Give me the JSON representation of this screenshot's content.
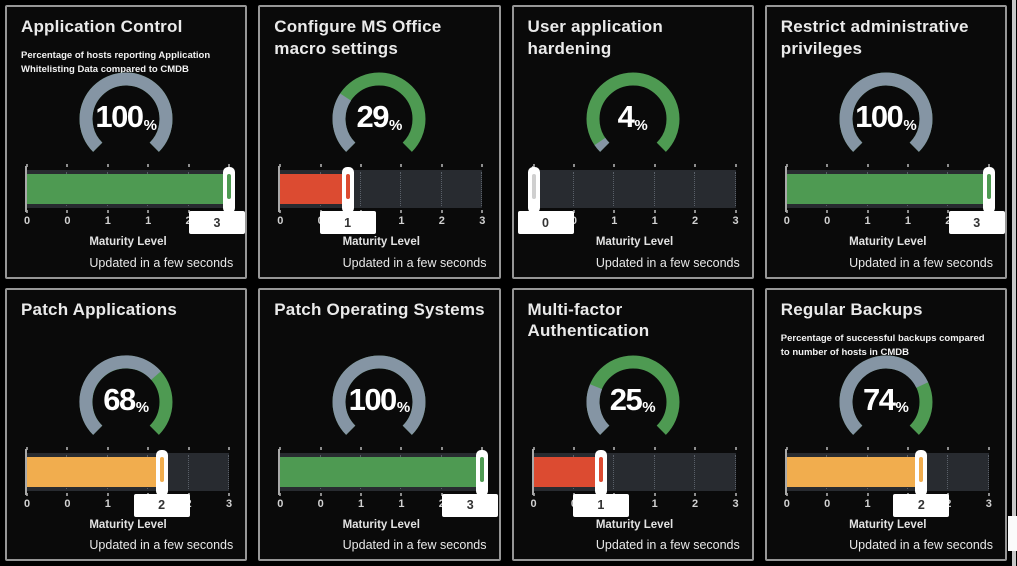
{
  "labels": {
    "maturity_level": "Maturity Level",
    "updated": "Updated in a few seconds",
    "percent_sign": "%"
  },
  "axis": {
    "title": "Maturity Level",
    "min": 0,
    "max": 3,
    "tick_labels": [
      "0",
      "0",
      "1",
      "1",
      "2",
      "3"
    ]
  },
  "colors": {
    "gauge_value": "#8595a4",
    "gauge_remainder": "#4e9a52",
    "green": "#4e9a52",
    "orange": "#f1ad4e",
    "red": "#dc4b31",
    "track": "#282b30",
    "panel_border": "#969696",
    "marker": "#ffffff"
  },
  "chart_data": [
    {
      "type": "gauge",
      "title": "Application Control",
      "subtitle": "Percentage of hosts reporting Application Whitelisting Data compared to CMDB",
      "percent": 100,
      "maturity": 3,
      "bar_color": "green"
    },
    {
      "type": "gauge",
      "title": "Configure MS Office macro settings",
      "subtitle": "",
      "percent": 29,
      "maturity": 1,
      "bar_color": "red"
    },
    {
      "type": "gauge",
      "title": "User application hardening",
      "subtitle": "",
      "percent": 4,
      "maturity": 0,
      "bar_color": "none"
    },
    {
      "type": "gauge",
      "title": "Restrict administrative privileges",
      "subtitle": "",
      "percent": 100,
      "maturity": 3,
      "bar_color": "green"
    },
    {
      "type": "gauge",
      "title": "Patch Applications",
      "subtitle": "",
      "percent": 68,
      "maturity": 2,
      "bar_color": "orange"
    },
    {
      "type": "gauge",
      "title": "Patch Operating Systems",
      "subtitle": "",
      "percent": 100,
      "maturity": 3,
      "bar_color": "green"
    },
    {
      "type": "gauge",
      "title": "Multi-factor Authentication",
      "subtitle": "",
      "percent": 25,
      "maturity": 1,
      "bar_color": "red"
    },
    {
      "type": "gauge",
      "title": "Regular Backups",
      "subtitle": "Percentage of successful backups compared to number of hosts in CMDB",
      "percent": 74,
      "maturity": 2,
      "bar_color": "orange"
    }
  ]
}
